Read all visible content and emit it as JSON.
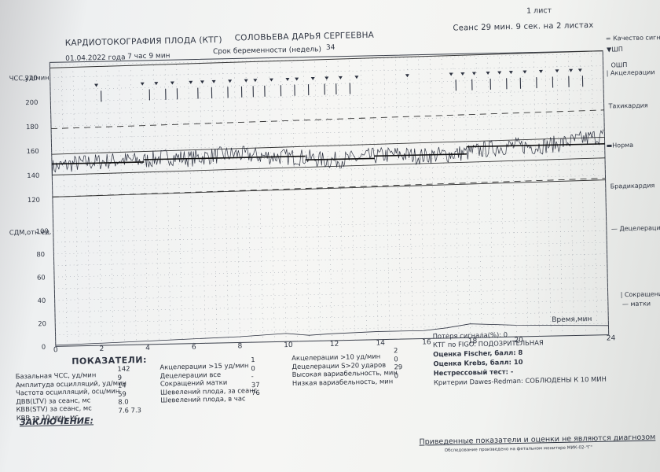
{
  "header": {
    "sheet": "1 лист",
    "title": "КАРДИОТОКОГРАФИЯ ПЛОДА (КТГ)",
    "patient": "СОЛОВЬЕВА ДАРЬЯ СЕРГЕЕВНА",
    "session": "Сеанс 29 мин. 9 сек. на 2 листах",
    "date": "01.04.2022 года",
    "time": "7 час  9 мин",
    "gestation_label": "Срок беременности (недель)",
    "gestation_value": "34"
  },
  "legend_right": {
    "quality": "Качество сигн.",
    "shp": "ШП",
    "oshp": "ОШП",
    "accel": "Акцелерации",
    "tachy": "Тахикардия",
    "norm": "Норма",
    "brady": "Брадикардия",
    "decel": "Децелерации",
    "contraction": "Сокращения",
    "uterus": "матки"
  },
  "chart_data": {
    "type": "line",
    "ylabel_top": "ЧСС,уд/мин",
    "ylabel_bottom": "СДМ,отн.ед.",
    "xlabel": "Время,мин",
    "x_ticks": [
      "0",
      "2",
      "4",
      "6",
      "8",
      "10",
      "12",
      "14",
      "16",
      "18",
      "20",
      "24"
    ],
    "y_ticks_hr": [
      "220",
      "200",
      "180",
      "160",
      "140",
      "120"
    ],
    "y_ticks_uc": [
      "100",
      "80",
      "60",
      "40",
      "20",
      "0"
    ],
    "xlim": [
      0,
      24
    ],
    "ylim_hr": [
      120,
      230
    ],
    "ylim_uc": [
      0,
      100
    ],
    "series": [
      {
        "name": "",
        "x": [
          0,
          1,
          2,
          3,
          4,
          5,
          6,
          7,
          8,
          9,
          10,
          11,
          12,
          13,
          14,
          15,
          16,
          17,
          18,
          19,
          20,
          21,
          22,
          23,
          24
        ],
        "values": [
          146,
          149,
          150,
          151,
          150,
          153,
          151,
          153,
          154,
          152,
          151,
          150,
          147,
          148,
          150,
          151,
          149,
          150,
          151,
          154,
          156,
          155,
          157,
          160,
          163
        ]
      },
      {
        "name": "",
        "x": [
          0,
          2,
          4,
          6,
          8,
          10,
          11,
          12,
          14,
          16,
          17,
          18,
          20,
          22,
          24
        ],
        "values": [
          1,
          2,
          3,
          4,
          5,
          7,
          5,
          6,
          7,
          7,
          9,
          12,
          10,
          9,
          8
        ]
      }
    ],
    "baseline_segments": [
      {
        "x": [
          0,
          4
        ],
        "value": 149
      },
      {
        "x": [
          4,
          8
        ],
        "value": 151
      },
      {
        "x": [
          8,
          11
        ],
        "value": 151
      },
      {
        "x": [
          11,
          14
        ],
        "value": 148
      },
      {
        "x": [
          14,
          18
        ],
        "value": 150
      },
      {
        "x": [
          18,
          24
        ],
        "value": 156
      }
    ],
    "norm_lines": [
      155,
      138
    ],
    "dashed_lines": [
      176,
      120
    ]
  },
  "indicators": {
    "title": "ПОКАЗАТЕЛИ:",
    "col1": [
      {
        "label": "Базальная ЧСС, уд/мин",
        "value": "142"
      },
      {
        "label": "Амплитуда осцилляций, уд/мин",
        "value": "9"
      },
      {
        "label": "Частота осцилляций, осц/мин",
        "value": "14"
      },
      {
        "label": "ДВВ(LTV) за сеанс, мс",
        "value": "59"
      },
      {
        "label": "КВВ(STV) за сеанс, мс",
        "value": "8.0"
      },
      {
        "label": "КВВ за 10 мин, мс",
        "value": "7.6   7.3"
      }
    ],
    "col2": [
      {
        "label": "Акцелерации >15 уд/мин",
        "value": "1"
      },
      {
        "label": "Децелерации все",
        "value": "0"
      },
      {
        "label": "Сокращений матки",
        "value": "-"
      },
      {
        "label": "Шевелений плода, за сеанс",
        "value": "37"
      },
      {
        "label": "Шевелений плода, в час",
        "value": "76"
      }
    ],
    "col3": [
      {
        "label": "Акцелерации >10 уд/мин",
        "value": "2"
      },
      {
        "label": "Децелерации S>20 ударов",
        "value": "0"
      },
      {
        "label": "Высокая вариабельность, мин",
        "value": "29"
      },
      {
        "label": "Низкая вариабельность, мин",
        "value": "0"
      }
    ],
    "col4": {
      "signal_loss": "Потеря сигнала(%):  0",
      "figo": "КТГ по FIGO: ПОДОЗРИТЕЛЬНАЯ",
      "fischer": "Оценка Fischer, балл:  8",
      "krebs": "Оценка Krebs, балл:  10",
      "nst": "Нестрессовый тест:  -",
      "dawes": "Критерии Dawes-Redman: СОБЛЮДЕНЫ К 10 МИН"
    }
  },
  "conclusion": "ЗАКЛЮЧЕНИЕ:",
  "footer": {
    "disclaimer": "Приведенные показатели и оценки не являются диагнозом",
    "device": "Обследование произведено на фетальном мониторе МИК-02-\"Г\""
  }
}
